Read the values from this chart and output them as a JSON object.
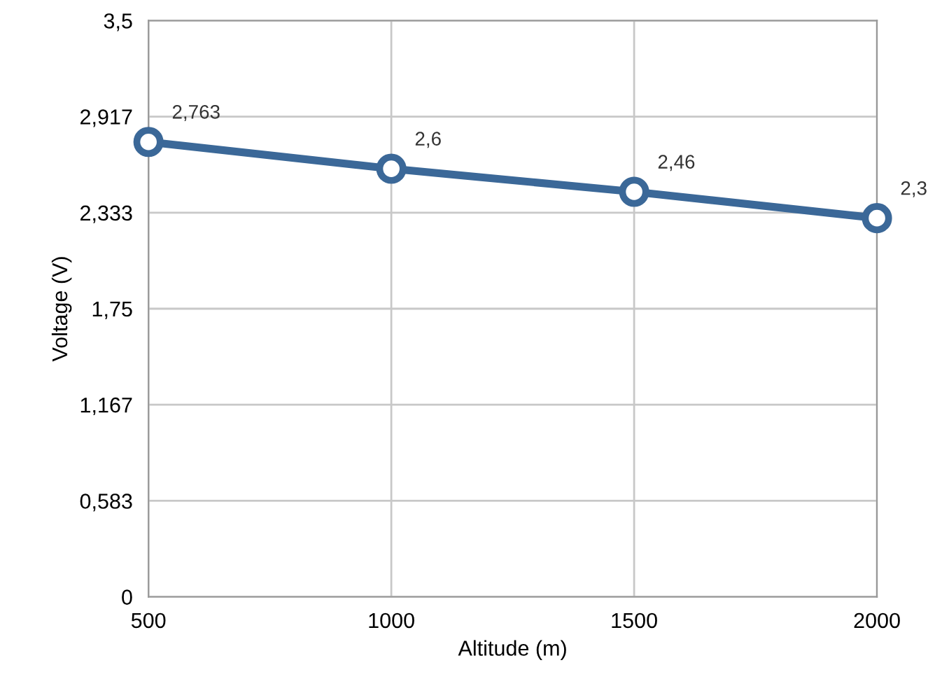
{
  "chart_data": {
    "type": "line",
    "xlabel": "Altitude (m)",
    "ylabel": "Voltage (V)",
    "x": [
      500,
      1000,
      1500,
      2000
    ],
    "series": [
      {
        "color": "#3b6898",
        "values": [
          2.763,
          2.6,
          2.46,
          2.3
        ],
        "value_labels": [
          "2,763",
          "2,6",
          "2,46",
          "2,3"
        ]
      }
    ],
    "xlim": [
      500,
      2000
    ],
    "xticks": [
      500,
      1000,
      1500,
      2000
    ],
    "ylim": [
      0,
      3.5
    ],
    "yticks": [
      {
        "value": 0,
        "label": "0"
      },
      {
        "value": 0.583,
        "label": "0,583"
      },
      {
        "value": 1.167,
        "label": "1,167"
      },
      {
        "value": 1.75,
        "label": "1,75"
      },
      {
        "value": 2.333,
        "label": "2,333"
      },
      {
        "value": 2.917,
        "label": "2,917"
      },
      {
        "value": 3.5,
        "label": "3,5"
      }
    ],
    "grid": true,
    "marker": "circle",
    "line_style": "solid",
    "legend": false
  }
}
